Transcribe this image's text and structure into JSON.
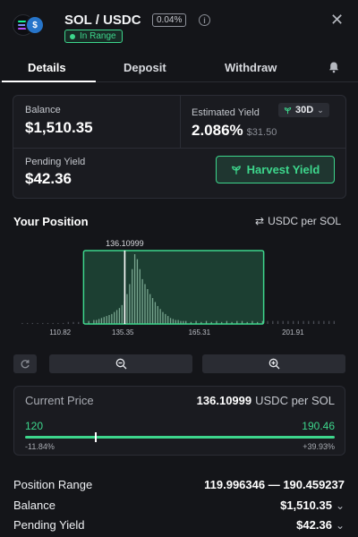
{
  "header": {
    "pair": "SOL / USDC",
    "fee": "0.04%",
    "status": "In Range",
    "colors": {
      "accent": "#3dd68c",
      "bg": "#141519",
      "usdc": "#2775ca"
    }
  },
  "tabs": [
    {
      "label": "Details",
      "active": true
    },
    {
      "label": "Deposit",
      "active": false
    },
    {
      "label": "Withdraw",
      "active": false
    }
  ],
  "summary": {
    "balance_label": "Balance",
    "balance_value": "$1,510.35",
    "yield_label": "Estimated Yield",
    "yield_period": "30D",
    "yield_pct": "2.086%",
    "yield_usd": "$31.50",
    "pending_label": "Pending Yield",
    "pending_value": "$42.36",
    "harvest_label": "Harvest Yield"
  },
  "position": {
    "title": "Your Position",
    "unit_toggle": "USDC per SOL"
  },
  "chart_data": {
    "type": "bar",
    "current_price_label": "136.10999",
    "x_ticks": [
      "110.82",
      "135.35",
      "165.31",
      "201.91"
    ],
    "range": {
      "low": 119.996346,
      "high": 190.459237
    },
    "current": 136.10999,
    "xlim": [
      95,
      220
    ],
    "bins": [
      [
        96,
        1
      ],
      [
        98,
        1
      ],
      [
        100,
        1
      ],
      [
        102,
        1
      ],
      [
        104,
        1
      ],
      [
        106,
        1
      ],
      [
        108,
        1
      ],
      [
        110,
        1
      ],
      [
        112,
        1
      ],
      [
        114,
        2
      ],
      [
        116,
        2
      ],
      [
        118,
        2
      ],
      [
        120,
        3
      ],
      [
        122,
        3
      ],
      [
        124,
        4
      ],
      [
        125,
        4
      ],
      [
        126,
        5
      ],
      [
        127,
        6
      ],
      [
        128,
        7
      ],
      [
        129,
        8
      ],
      [
        130,
        9
      ],
      [
        131,
        10
      ],
      [
        132,
        12
      ],
      [
        133,
        14
      ],
      [
        134,
        16
      ],
      [
        135,
        19
      ],
      [
        136,
        23
      ],
      [
        137,
        30
      ],
      [
        138,
        40
      ],
      [
        139,
        55
      ],
      [
        140,
        70
      ],
      [
        141,
        65
      ],
      [
        142,
        55
      ],
      [
        143,
        45
      ],
      [
        144,
        40
      ],
      [
        145,
        35
      ],
      [
        146,
        30
      ],
      [
        147,
        26
      ],
      [
        148,
        22
      ],
      [
        149,
        18
      ],
      [
        150,
        15
      ],
      [
        151,
        12
      ],
      [
        152,
        10
      ],
      [
        153,
        8
      ],
      [
        154,
        6
      ],
      [
        155,
        5
      ],
      [
        156,
        4
      ],
      [
        157,
        4
      ],
      [
        158,
        3
      ],
      [
        159,
        3
      ],
      [
        160,
        3
      ],
      [
        162,
        2
      ],
      [
        164,
        3
      ],
      [
        166,
        2
      ],
      [
        168,
        3
      ],
      [
        170,
        2
      ],
      [
        172,
        3
      ],
      [
        174,
        2
      ],
      [
        176,
        3
      ],
      [
        178,
        2
      ],
      [
        180,
        3
      ],
      [
        182,
        3
      ],
      [
        184,
        2
      ],
      [
        186,
        3
      ],
      [
        188,
        2
      ],
      [
        190,
        3
      ],
      [
        192,
        3
      ],
      [
        194,
        3
      ],
      [
        196,
        3
      ],
      [
        198,
        3
      ],
      [
        200,
        3
      ],
      [
        202,
        3
      ],
      [
        204,
        3
      ],
      [
        206,
        3
      ],
      [
        208,
        3
      ],
      [
        210,
        3
      ],
      [
        212,
        3
      ],
      [
        214,
        3
      ],
      [
        216,
        3
      ],
      [
        218,
        3
      ]
    ]
  },
  "price": {
    "label": "Current Price",
    "value": "136.10999",
    "unit": "USDC per SOL",
    "min": "120",
    "max": "190.46",
    "min_pct": "-11.84%",
    "max_pct": "+39.93%"
  },
  "details": {
    "range_label": "Position Range",
    "range_value": "119.996346 — 190.459237",
    "balance_label": "Balance",
    "balance_value": "$1,510.35",
    "pending_label": "Pending Yield",
    "pending_value": "$42.36"
  }
}
